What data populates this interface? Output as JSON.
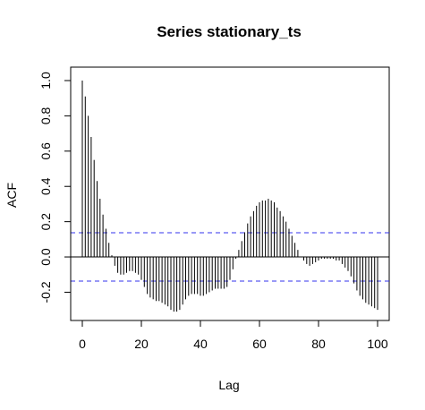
{
  "chart_data": {
    "type": "bar",
    "title": "Series  stationary_ts",
    "xlabel": "Lag",
    "ylabel": "ACF",
    "xlim": [
      0,
      100
    ],
    "ylim": [
      -0.37,
      1.07
    ],
    "x_ticks": [
      "0",
      "20",
      "40",
      "60",
      "80",
      "100"
    ],
    "y_ticks": [
      "-0.2",
      "0.0",
      "0.2",
      "0.4",
      "0.6",
      "0.8",
      "1.0"
    ],
    "x_tick_values": [
      0,
      20,
      40,
      60,
      80,
      100
    ],
    "y_tick_values": [
      -0.2,
      0.0,
      0.2,
      0.4,
      0.6,
      0.8,
      1.0
    ],
    "confidence_band": 0.137,
    "grid": false,
    "colors": {
      "bars": "#000000",
      "confidence": "#3333ee",
      "axes": "#000000",
      "zero_line": "#000000"
    },
    "x": [
      0,
      1,
      2,
      3,
      4,
      5,
      6,
      7,
      8,
      9,
      10,
      11,
      12,
      13,
      14,
      15,
      16,
      17,
      18,
      19,
      20,
      21,
      22,
      23,
      24,
      25,
      26,
      27,
      28,
      29,
      30,
      31,
      32,
      33,
      34,
      35,
      36,
      37,
      38,
      39,
      40,
      41,
      42,
      43,
      44,
      45,
      46,
      47,
      48,
      49,
      50,
      51,
      52,
      53,
      54,
      55,
      56,
      57,
      58,
      59,
      60,
      61,
      62,
      63,
      64,
      65,
      66,
      67,
      68,
      69,
      70,
      71,
      72,
      73,
      74,
      75,
      76,
      77,
      78,
      79,
      80,
      81,
      82,
      83,
      84,
      85,
      86,
      87,
      88,
      89,
      90,
      91,
      92,
      93,
      94,
      95,
      96,
      97,
      98,
      99,
      100
    ],
    "values": [
      1.0,
      0.91,
      0.8,
      0.68,
      0.55,
      0.43,
      0.33,
      0.24,
      0.16,
      0.08,
      0.01,
      -0.05,
      -0.09,
      -0.1,
      -0.1,
      -0.09,
      -0.08,
      -0.08,
      -0.09,
      -0.1,
      -0.13,
      -0.17,
      -0.21,
      -0.23,
      -0.24,
      -0.25,
      -0.25,
      -0.26,
      -0.27,
      -0.28,
      -0.3,
      -0.31,
      -0.31,
      -0.3,
      -0.27,
      -0.24,
      -0.22,
      -0.21,
      -0.21,
      -0.21,
      -0.22,
      -0.22,
      -0.21,
      -0.2,
      -0.19,
      -0.18,
      -0.18,
      -0.18,
      -0.18,
      -0.17,
      -0.13,
      -0.07,
      -0.01,
      0.04,
      0.09,
      0.14,
      0.19,
      0.23,
      0.26,
      0.29,
      0.31,
      0.32,
      0.32,
      0.33,
      0.32,
      0.31,
      0.28,
      0.26,
      0.23,
      0.2,
      0.16,
      0.12,
      0.08,
      0.04,
      0.0,
      -0.02,
      -0.04,
      -0.05,
      -0.04,
      -0.03,
      -0.02,
      -0.01,
      -0.01,
      -0.01,
      -0.01,
      -0.01,
      -0.02,
      -0.02,
      -0.04,
      -0.06,
      -0.08,
      -0.11,
      -0.15,
      -0.19,
      -0.22,
      -0.24,
      -0.26,
      -0.27,
      -0.28,
      -0.29,
      -0.3
    ]
  }
}
